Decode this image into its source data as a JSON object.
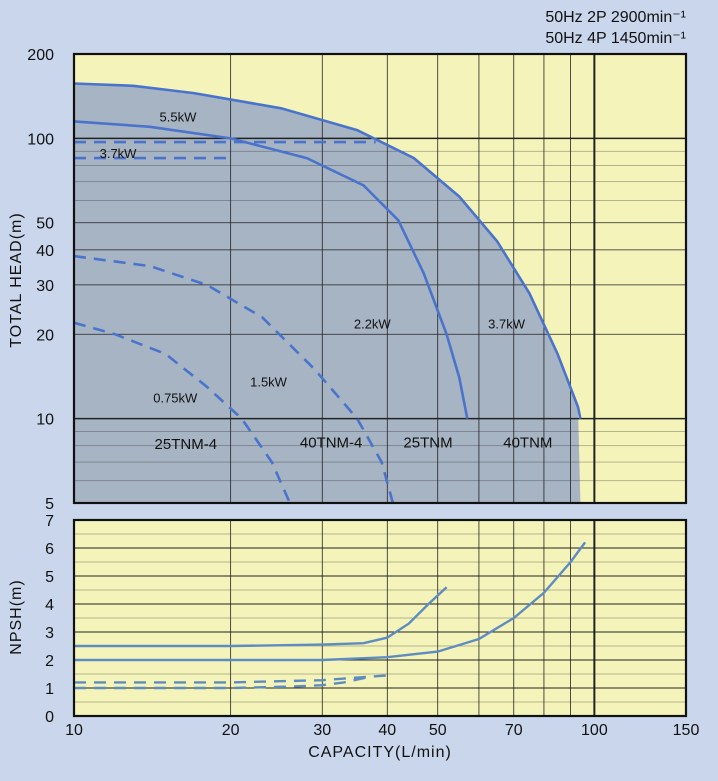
{
  "header": {
    "line1": "50Hz 2P 2900min⁻¹",
    "line2": "50Hz 4P 1450min⁻¹"
  },
  "colors": {
    "background": "#c9d6ec",
    "plot_fill": "#f4f4ba",
    "region_fill": "#a7b4c4",
    "curve": "#4a74cc",
    "npsh_curve": "#5f8cc0",
    "grid": "#222222"
  },
  "chart_data": [
    {
      "type": "line",
      "title": "",
      "xlabel": "CAPACITY(L/min)",
      "ylabel": "TOTAL HEAD(m)",
      "x_scale": "log",
      "y_scale": "log",
      "xlim": [
        10,
        150
      ],
      "ylim": [
        5,
        200
      ],
      "x_ticks": [
        10,
        20,
        30,
        40,
        50,
        70,
        100,
        150
      ],
      "y_ticks": [
        5,
        10,
        20,
        30,
        40,
        50,
        100,
        200
      ],
      "grid": true,
      "region": {
        "name": "40TNM",
        "points": [
          [
            10,
            5
          ],
          [
            10,
            157
          ],
          [
            13,
            154
          ],
          [
            17,
            145
          ],
          [
            25,
            128
          ],
          [
            35,
            107
          ],
          [
            45,
            85
          ],
          [
            55,
            62
          ],
          [
            65,
            43
          ],
          [
            75,
            28
          ],
          [
            85,
            17
          ],
          [
            93,
            11
          ],
          [
            94,
            5
          ]
        ]
      },
      "series": [
        {
          "name": "5.5kW",
          "style": "solid",
          "points": [
            [
              10,
              157
            ],
            [
              13,
              154
            ],
            [
              17,
              145
            ],
            [
              25,
              128
            ],
            [
              35,
              107
            ],
            [
              45,
              85
            ],
            [
              55,
              62
            ],
            [
              65,
              43
            ],
            [
              75,
              28
            ],
            [
              85,
              17
            ],
            [
              93,
              11
            ],
            [
              94,
              10
            ]
          ]
        },
        {
          "name": "3.7kW",
          "style": "solid",
          "points": [
            [
              10,
              115
            ],
            [
              14,
              110
            ],
            [
              20,
              100
            ],
            [
              28,
              85
            ],
            [
              36,
              68
            ],
            [
              42,
              51
            ],
            [
              47,
              33
            ],
            [
              52,
              20
            ],
            [
              55,
              14
            ],
            [
              57,
              10
            ]
          ]
        },
        {
          "name": "3.7kW",
          "style": "dashed",
          "points": [
            [
              10,
              85
            ],
            [
              20,
              85
            ]
          ]
        },
        {
          "name": "2.2kW",
          "style": "dashed",
          "points": [
            [
              10,
              97
            ],
            [
              38,
              97
            ]
          ]
        },
        {
          "name": "1.5kW",
          "style": "dashed",
          "points": [
            [
              10,
              38
            ],
            [
              14,
              35
            ],
            [
              18,
              30
            ],
            [
              23,
              23
            ],
            [
              29,
              15
            ],
            [
              35,
              10
            ],
            [
              39,
              7
            ],
            [
              41,
              5
            ]
          ]
        },
        {
          "name": "0.75kW",
          "style": "dashed",
          "points": [
            [
              10,
              22
            ],
            [
              12,
              20
            ],
            [
              15,
              17
            ],
            [
              18,
              13
            ],
            [
              21,
              10
            ],
            [
              24,
              7
            ],
            [
              26,
              5
            ]
          ]
        }
      ],
      "annotations": [
        {
          "text": "5.5kW",
          "x": 14.6,
          "y": 115
        },
        {
          "text": "3.7kW",
          "x": 11.2,
          "y": 85
        },
        {
          "text": "2.2kW",
          "x": 34.5,
          "y": 21
        },
        {
          "text": "3.7kW",
          "x": 62.5,
          "y": 21
        },
        {
          "text": "1.5kW",
          "x": 21.8,
          "y": 13
        },
        {
          "text": "0.75kW",
          "x": 14.2,
          "y": 11.4
        }
      ],
      "models": [
        {
          "text": "25TNM-4",
          "x": 16.4,
          "y": 7.8
        },
        {
          "text": "40TNM-4",
          "x": 31.2,
          "y": 7.9
        },
        {
          "text": "25TNM",
          "x": 47.9,
          "y": 7.9
        },
        {
          "text": "40TNM",
          "x": 74.5,
          "y": 7.9
        }
      ]
    },
    {
      "type": "line",
      "title": "",
      "xlabel": "CAPACITY(L/min)",
      "ylabel": "NPSH(m)",
      "x_scale": "log",
      "xlim": [
        10,
        150
      ],
      "ylim": [
        0,
        7
      ],
      "x_ticks": [
        10,
        20,
        30,
        40,
        50,
        70,
        100,
        150
      ],
      "y_ticks": [
        0,
        1,
        2,
        3,
        4,
        5,
        6,
        7
      ],
      "grid": true,
      "series": [
        {
          "style": "solid",
          "points": [
            [
              10,
              2.5
            ],
            [
              20,
              2.5
            ],
            [
              30,
              2.55
            ],
            [
              36,
              2.6
            ],
            [
              40,
              2.8
            ],
            [
              44,
              3.3
            ],
            [
              48,
              4.0
            ],
            [
              52,
              4.6
            ]
          ]
        },
        {
          "style": "solid",
          "points": [
            [
              10,
              2.0
            ],
            [
              20,
              2.0
            ],
            [
              30,
              2.0
            ],
            [
              40,
              2.1
            ],
            [
              50,
              2.3
            ],
            [
              60,
              2.75
            ],
            [
              70,
              3.5
            ],
            [
              80,
              4.4
            ],
            [
              90,
              5.5
            ],
            [
              96,
              6.2
            ]
          ]
        },
        {
          "style": "dashed",
          "points": [
            [
              10,
              1.2
            ],
            [
              20,
              1.2
            ],
            [
              30,
              1.28
            ],
            [
              40,
              1.45
            ],
            [
              41,
              1.5
            ]
          ]
        },
        {
          "style": "dashed",
          "points": [
            [
              10,
              1.0
            ],
            [
              20,
              1.0
            ],
            [
              26,
              1.05
            ],
            [
              30,
              1.1
            ],
            [
              33,
              1.2
            ],
            [
              36,
              1.35
            ],
            [
              37,
              1.4
            ]
          ]
        }
      ]
    }
  ]
}
